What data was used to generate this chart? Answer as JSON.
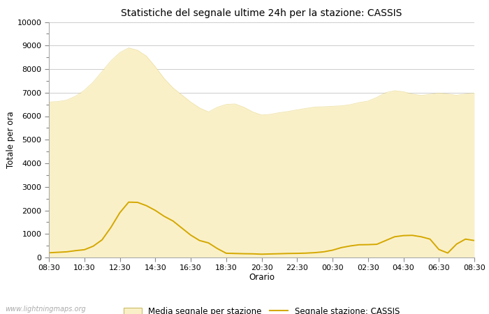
{
  "title": "Statistiche del segnale ultime 24h per la stazione: CASSIS",
  "xlabel": "Orario",
  "ylabel": "Totale per ora",
  "xlim_labels": [
    "08:30",
    "10:30",
    "12:30",
    "14:30",
    "16:30",
    "18:30",
    "20:30",
    "22:30",
    "00:30",
    "02:30",
    "04:30",
    "06:30",
    "08:30"
  ],
  "ylim": [
    0,
    10000
  ],
  "yticks_major": [
    0,
    1000,
    2000,
    3000,
    4000,
    5000,
    6000,
    7000,
    8000,
    9000,
    10000
  ],
  "yticks_minor": [
    500,
    1500,
    2500,
    3500,
    4500,
    5500,
    6500,
    7500,
    8500,
    9500
  ],
  "background_color": "#ffffff",
  "fill_color": "#FAF0C8",
  "fill_edge_color": "#E8D888",
  "line_color": "#D4A800",
  "watermark": "www.lightningmaps.org",
  "legend_fill": "Media segnale per stazione",
  "legend_line": "Segnale stazione: CASSIS",
  "avg_x": [
    0,
    1,
    2,
    3,
    4,
    5,
    6,
    7,
    8,
    9,
    10,
    11,
    12,
    13,
    14,
    15,
    16,
    17,
    18,
    19,
    20,
    21,
    22,
    23,
    24,
    25,
    26,
    27,
    28,
    29,
    30,
    31,
    32,
    33,
    34,
    35,
    36,
    37,
    38,
    39,
    40,
    41,
    42,
    43,
    44,
    45,
    46,
    47,
    48
  ],
  "avg_y": [
    6600,
    6620,
    6680,
    6850,
    7100,
    7450,
    7900,
    8350,
    8700,
    8900,
    8800,
    8550,
    8100,
    7600,
    7200,
    6900,
    6600,
    6350,
    6180,
    6380,
    6500,
    6520,
    6380,
    6180,
    6050,
    6080,
    6150,
    6200,
    6270,
    6330,
    6390,
    6400,
    6420,
    6440,
    6490,
    6580,
    6640,
    6800,
    7000,
    7080,
    7040,
    6940,
    6880,
    6930,
    6980,
    6940,
    6890,
    6940,
    6980
  ],
  "station_y": [
    200,
    220,
    240,
    290,
    330,
    480,
    750,
    1280,
    1900,
    2350,
    2340,
    2200,
    2000,
    1750,
    1550,
    1250,
    950,
    720,
    620,
    380,
    180,
    170,
    160,
    155,
    140,
    150,
    160,
    170,
    175,
    185,
    205,
    240,
    310,
    420,
    490,
    540,
    545,
    560,
    720,
    880,
    930,
    940,
    880,
    780,
    340,
    190,
    570,
    780,
    720
  ]
}
